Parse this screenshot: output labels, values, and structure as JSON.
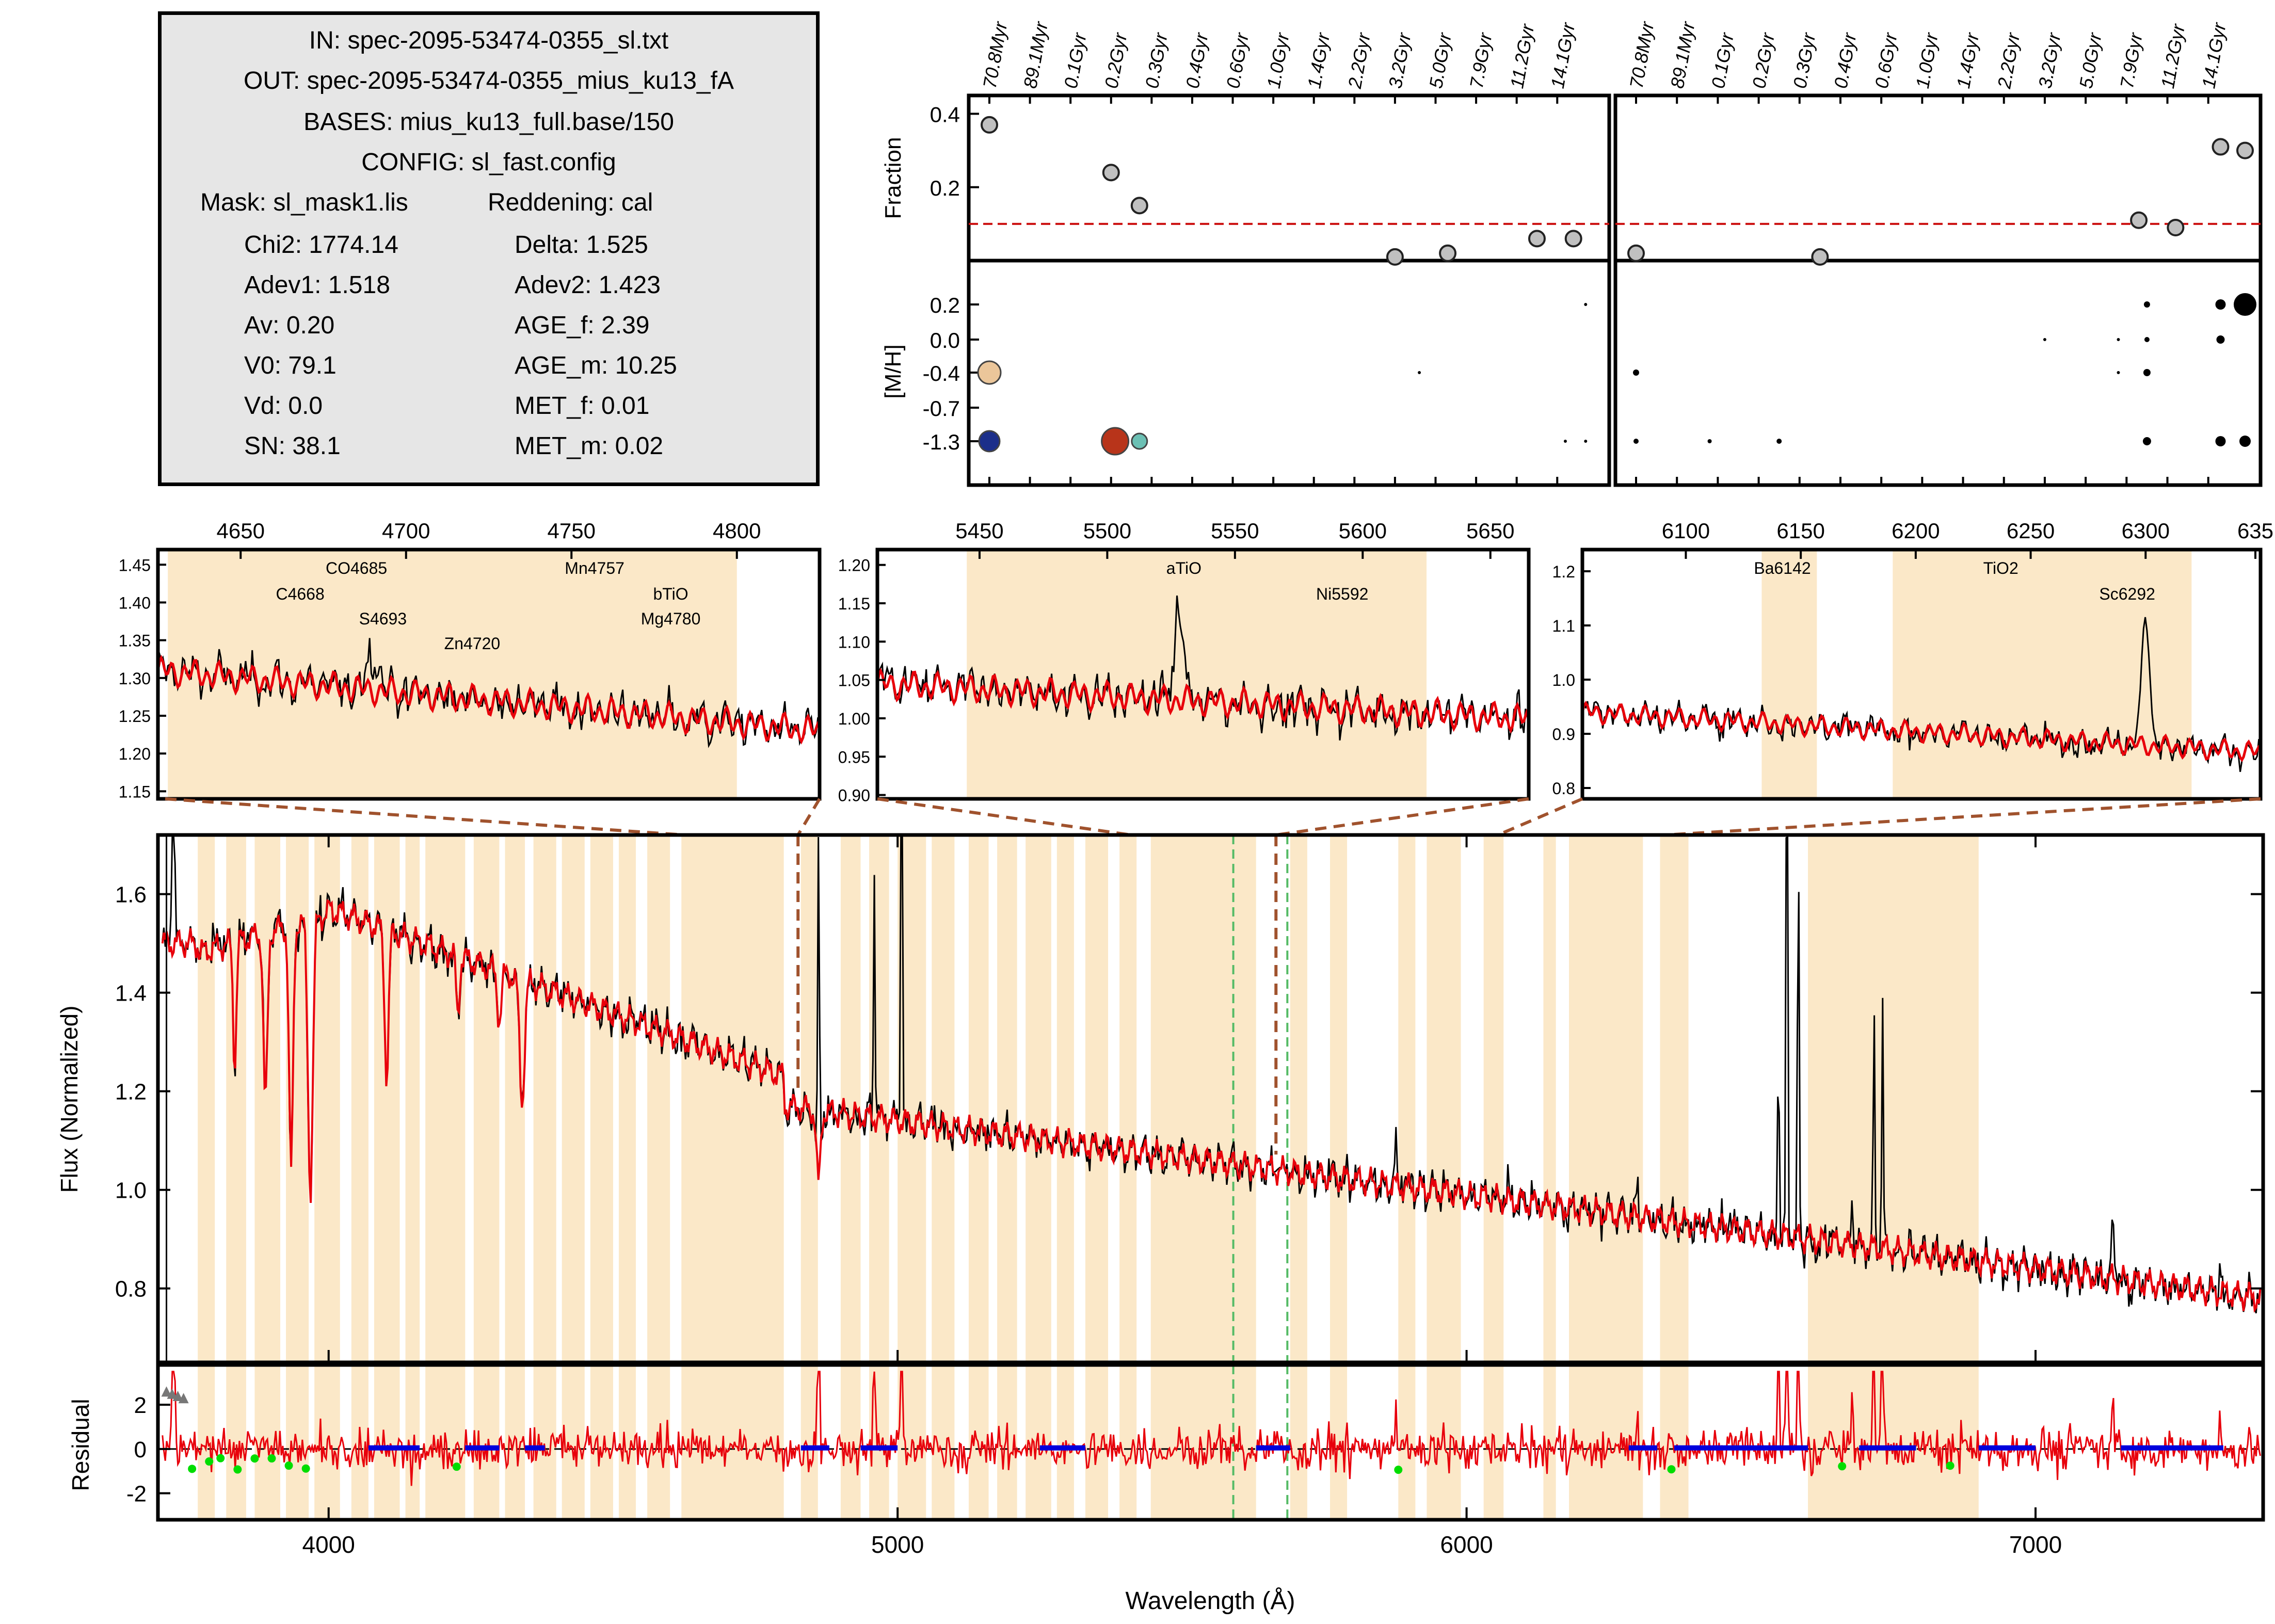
{
  "info": {
    "in": "IN: spec-2095-53474-0355_sl.txt",
    "out": "OUT: spec-2095-53474-0355_mius_ku13_fA",
    "bases": "BASES: mius_ku13_full.base/150",
    "config": "CONFIG: sl_fast.config",
    "mask": "Mask: sl_mask1.lis",
    "reddening": "Reddening: cal",
    "left": [
      "Chi2: 1774.14",
      "Adev1: 1.518",
      "Av: 0.20",
      "V0:  79.1",
      "Vd: 0.0",
      "SN: 38.1"
    ],
    "right": [
      "Delta: 1.525",
      "Adev2: 1.423",
      "AGE_f:   2.39",
      "AGE_m: 10.25",
      "MET_f:   0.01",
      "MET_m: 0.02"
    ]
  },
  "chart_data": [
    {
      "id": "population-fraction",
      "type": "scatter",
      "ylabel": "Fraction",
      "age_ticks": [
        "70.8Myr",
        "89.1Myr",
        "0.1Gyr",
        "0.2Gyr",
        "0.3Gyr",
        "0.4Gyr",
        "0.6Gyr",
        "1.0Gyr",
        "1.4Gyr",
        "2.2Gyr",
        "3.2Gyr",
        "5.0Gyr",
        "7.9Gyr",
        "11.2Gyr",
        "14.1Gyr"
      ],
      "yticks": [
        0.4,
        0.2
      ],
      "ylim": [
        0,
        0.45
      ],
      "threshold": 0.1,
      "left_points": [
        {
          "age": 0,
          "y": 0.37
        },
        {
          "age": 3,
          "y": 0.24
        },
        {
          "age": 3.7,
          "y": 0.15
        },
        {
          "age": 10,
          "y": 0.01
        },
        {
          "age": 11.3,
          "y": 0.02
        },
        {
          "age": 13.5,
          "y": 0.06
        },
        {
          "age": 14.4,
          "y": 0.06
        }
      ],
      "right_points": [
        {
          "age": 0,
          "y": 0.02
        },
        {
          "age": 4.5,
          "y": 0.01
        },
        {
          "age": 12.3,
          "y": 0.11
        },
        {
          "age": 13.2,
          "y": 0.09
        },
        {
          "age": 14.3,
          "y": 0.31
        },
        {
          "age": 14.9,
          "y": 0.3
        }
      ]
    },
    {
      "id": "population-metallicity",
      "type": "scatter",
      "ylabel": "[M/H]",
      "yticks": [
        "0.2",
        "0.0",
        "-0.4",
        "-0.7",
        "-1.3"
      ],
      "left_points": [
        {
          "age": 0,
          "met": "-0.4",
          "color": "#ebc69a"
        },
        {
          "age": 0,
          "met": "-1.3",
          "color": "#1c2f8a"
        },
        {
          "age": 3.1,
          "met": "-1.3",
          "color": "#b8341a"
        },
        {
          "age": 3.7,
          "met": "-1.3",
          "color": "#6cc0b4"
        }
      ],
      "right_points": [
        {
          "age": 14.3,
          "met": "0.2",
          "color": "#000000"
        },
        {
          "age": 14.9,
          "met": "0.2",
          "color": "#000000"
        }
      ]
    },
    {
      "id": "zoom-1",
      "type": "line",
      "xticks": [
        4650,
        4700,
        4750,
        4800
      ],
      "yticks": [
        "1.45",
        "1.40",
        "1.35",
        "1.30",
        "1.25",
        "1.20",
        "1.15"
      ],
      "labels": [
        "CO4685",
        "C4668",
        "S4693",
        "Zn4720",
        "Mn4757",
        "bTiO",
        "Mg4780"
      ]
    },
    {
      "id": "zoom-2",
      "type": "line",
      "xticks": [
        5450,
        5500,
        5550,
        5600,
        5650
      ],
      "yticks": [
        "1.20",
        "1.15",
        "1.10",
        "1.05",
        "1.00",
        "0.95",
        "0.90"
      ],
      "labels": [
        "aTiO",
        "Ni5592"
      ]
    },
    {
      "id": "zoom-3",
      "type": "line",
      "xticks": [
        6100,
        6150,
        6200,
        6250,
        6300,
        635
      ],
      "yticks": [
        "1.2",
        "1.1",
        "1.0",
        "0.9",
        "0.8"
      ],
      "labels": [
        "Ba6142",
        "TiO2",
        "Sc6292"
      ]
    },
    {
      "id": "main-spectrum",
      "type": "line",
      "xlabel": "Wavelength (Å)",
      "ylabel": "Flux (Normalized)",
      "xlim": [
        3700,
        7400
      ],
      "ylim": [
        0.65,
        1.72
      ],
      "xticks": [
        4000,
        5000,
        6000,
        7000
      ],
      "yticks": [
        1.6,
        1.4,
        1.2,
        1.0,
        0.8
      ],
      "series": [
        {
          "color": "#000000",
          "values": []
        },
        {
          "color": "#e8000b",
          "values": []
        }
      ]
    },
    {
      "id": "residual",
      "type": "line",
      "ylabel": "Residual",
      "ylim": [
        -3.2,
        3.8
      ],
      "yticks": [
        2,
        0,
        -2
      ]
    }
  ],
  "colors": {
    "band": "#fbe8c8",
    "model": "#e8000b",
    "observed": "#000000",
    "connector": "#a0522d",
    "masked": "#0000dd",
    "clipped": "#00dd00"
  }
}
